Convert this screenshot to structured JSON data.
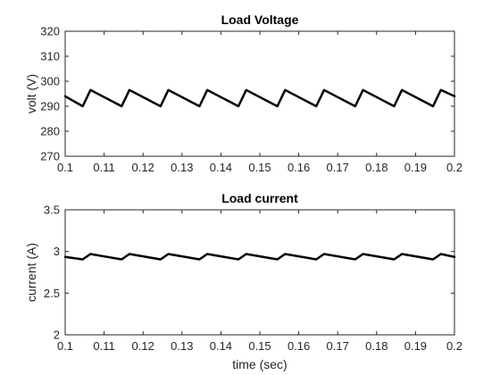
{
  "chart_data": [
    {
      "type": "line",
      "title": "Load Voltage",
      "xlabel": "",
      "ylabel": "volt (V)",
      "xlim": [
        0.1,
        0.2
      ],
      "ylim": [
        270,
        320
      ],
      "xticks": [
        0.1,
        0.11,
        0.12,
        0.13,
        0.14,
        0.15,
        0.16,
        0.17,
        0.18,
        0.19,
        0.2
      ],
      "xtick_labels": [
        "0.1",
        "0.11",
        "0.12",
        "0.13",
        "0.14",
        "0.15",
        "0.16",
        "0.17",
        "0.18",
        "0.19",
        "0.2"
      ],
      "yticks": [
        270,
        280,
        290,
        300,
        310,
        320
      ],
      "ytick_labels": [
        "270",
        "280",
        "290",
        "300",
        "310",
        "320"
      ],
      "grid": false,
      "line_color": "#000000",
      "series": [
        {
          "x": [
            0.1,
            0.1045,
            0.1065,
            0.1145,
            0.1165,
            0.1245,
            0.1265,
            0.1345,
            0.1365,
            0.1445,
            0.1465,
            0.1545,
            0.1565,
            0.1645,
            0.1665,
            0.1745,
            0.1765,
            0.1845,
            0.1865,
            0.1945,
            0.1965,
            0.2
          ],
          "y": [
            294,
            290,
            296.5,
            290,
            296.5,
            290,
            296.5,
            290,
            296.5,
            290,
            296.5,
            290,
            296.5,
            290,
            296.5,
            290,
            296.5,
            290,
            296.5,
            290,
            296.5,
            294
          ]
        }
      ]
    },
    {
      "type": "line",
      "title": "Load current",
      "xlabel": "time (sec)",
      "ylabel": "current (A)",
      "xlim": [
        0.1,
        0.2
      ],
      "ylim": [
        2,
        3.5
      ],
      "xticks": [
        0.1,
        0.11,
        0.12,
        0.13,
        0.14,
        0.15,
        0.16,
        0.17,
        0.18,
        0.19,
        0.2
      ],
      "xtick_labels": [
        "0.1",
        "0.11",
        "0.12",
        "0.13",
        "0.14",
        "0.15",
        "0.16",
        "0.17",
        "0.18",
        "0.19",
        "0.2"
      ],
      "yticks": [
        2,
        2.5,
        3,
        3.5
      ],
      "ytick_labels": [
        "2",
        "2.5",
        "3",
        "3.5"
      ],
      "grid": false,
      "line_color": "#000000",
      "series": [
        {
          "x": [
            0.1,
            0.1045,
            0.1065,
            0.1145,
            0.1165,
            0.1245,
            0.1265,
            0.1345,
            0.1365,
            0.1445,
            0.1465,
            0.1545,
            0.1565,
            0.1645,
            0.1665,
            0.1745,
            0.1765,
            0.1845,
            0.1865,
            0.1945,
            0.1965,
            0.2
          ],
          "y": [
            2.935,
            2.905,
            2.97,
            2.905,
            2.97,
            2.905,
            2.97,
            2.905,
            2.97,
            2.905,
            2.97,
            2.905,
            2.97,
            2.905,
            2.97,
            2.905,
            2.97,
            2.905,
            2.97,
            2.905,
            2.97,
            2.935
          ]
        }
      ]
    }
  ]
}
